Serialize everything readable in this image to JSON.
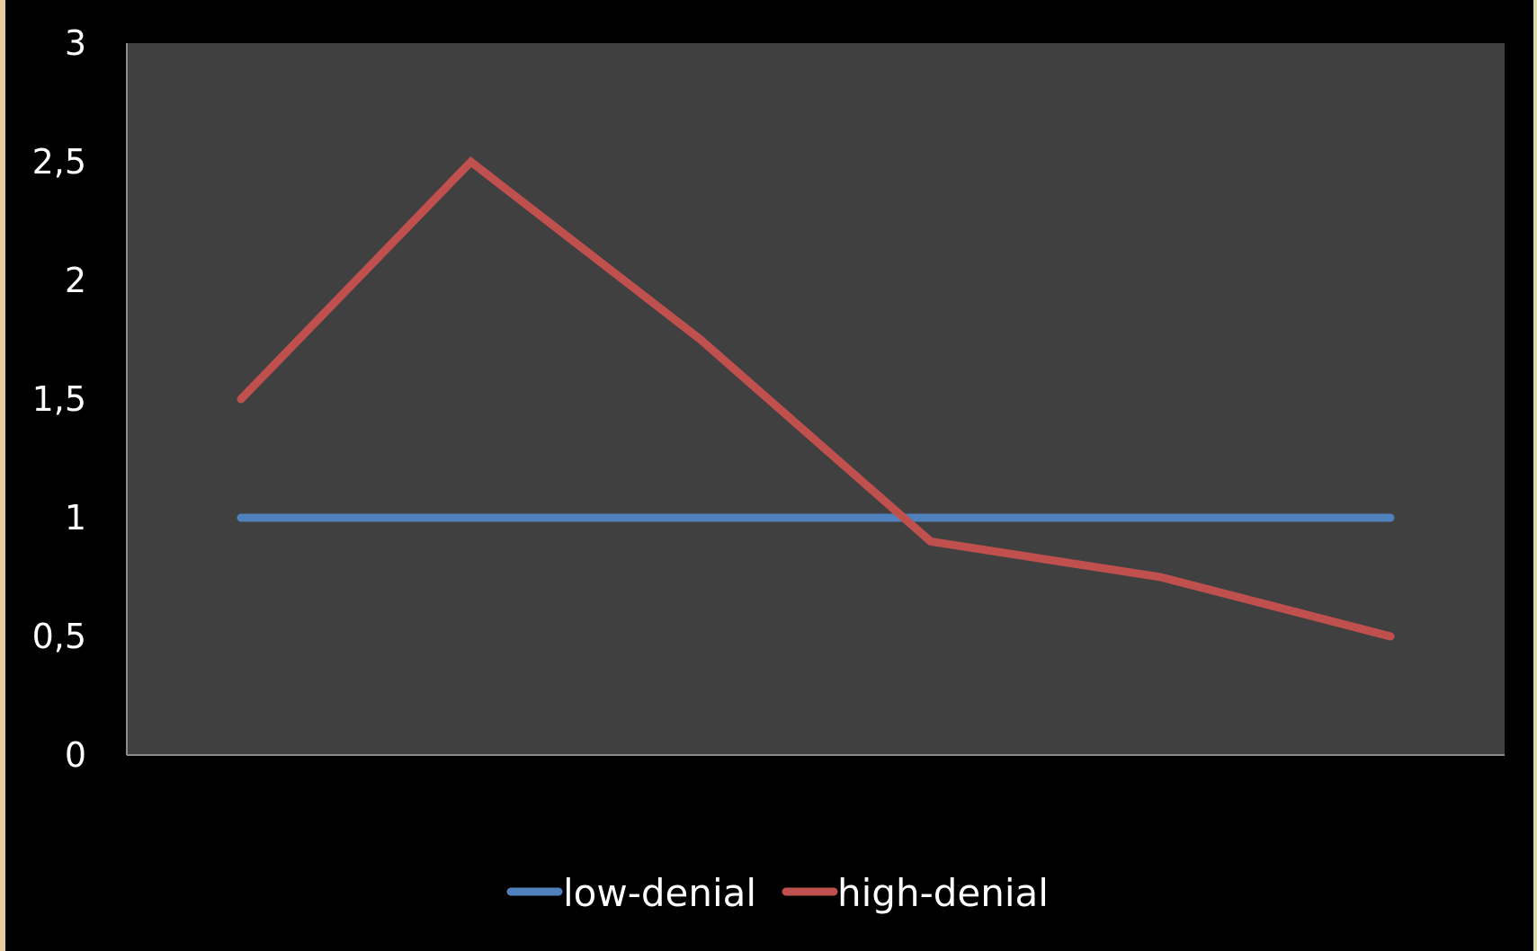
{
  "colors": {
    "background": "#000000",
    "plot_area": "#404040",
    "axis": "#8c8c8c",
    "text": "#ffffff"
  },
  "chart_data": {
    "type": "line",
    "x": [
      1,
      2,
      3,
      4,
      5,
      6
    ],
    "ylim": [
      0,
      3
    ],
    "y_ticks": [
      0,
      0.5,
      1,
      1.5,
      2,
      2.5,
      3
    ],
    "y_tick_labels": [
      "0",
      "0,5",
      "1",
      "1,5",
      "2",
      "2,5",
      "3"
    ],
    "grid": false,
    "legend_position": "bottom",
    "series": [
      {
        "name": "low-denial",
        "color": "#4f81bd",
        "values": [
          1,
          1,
          1,
          1,
          1,
          1
        ]
      },
      {
        "name": "high-denial",
        "color": "#c0504d",
        "values": [
          1.5,
          2.5,
          1.75,
          0.9,
          0.75,
          0.5
        ]
      }
    ]
  }
}
